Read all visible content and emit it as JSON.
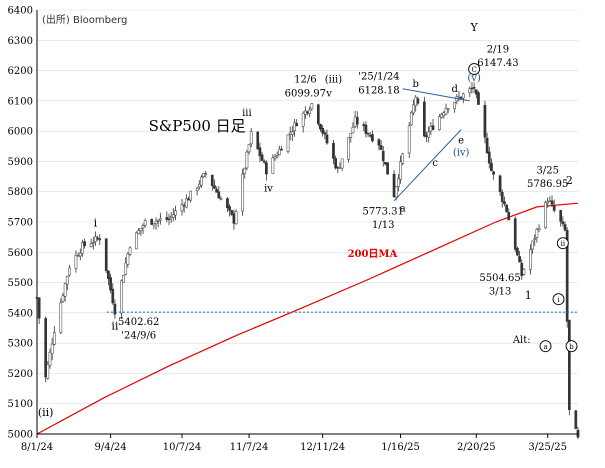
{
  "chart_data": {
    "type": "candlestick",
    "title": "S&P500 日足",
    "source": "(出所) Bloomberg",
    "ylim": [
      5000,
      6400
    ],
    "y_ticks": [
      5000,
      5100,
      5200,
      5300,
      5400,
      5500,
      5600,
      5700,
      5800,
      5900,
      6000,
      6100,
      6200,
      6300,
      6400
    ],
    "x_tick_labels": [
      "8/1/24",
      "9/4/24",
      "10/7/24",
      "11/7/24",
      "12/11/24",
      "1/16/25",
      "2/20/25",
      "3/25/25"
    ],
    "x_range": [
      "2024-08-01",
      "2025-04-08"
    ],
    "support_level": 5402.62,
    "ma_label": "200日MA",
    "ma_200": [
      {
        "x": "2024-08-01",
        "y": 5000
      },
      {
        "x": "2024-09-01",
        "y": 5120
      },
      {
        "x": "2024-10-01",
        "y": 5225
      },
      {
        "x": "2024-11-01",
        "y": 5325
      },
      {
        "x": "2024-12-01",
        "y": 5415
      },
      {
        "x": "2025-01-01",
        "y": 5510
      },
      {
        "x": "2025-02-01",
        "y": 5610
      },
      {
        "x": "2025-03-01",
        "y": 5700
      },
      {
        "x": "2025-03-20",
        "y": 5750
      },
      {
        "x": "2025-04-08",
        "y": 5762
      }
    ],
    "price_path": [
      {
        "x": "2024-08-01",
        "y": 5450
      },
      {
        "x": "2024-08-05",
        "y": 5186
      },
      {
        "x": "2024-08-09",
        "y": 5345
      },
      {
        "x": "2024-08-16",
        "y": 5555
      },
      {
        "x": "2024-08-22",
        "y": 5620
      },
      {
        "x": "2024-08-30",
        "y": 5648
      },
      {
        "x": "2024-09-06",
        "y": 5408
      },
      {
        "x": "2024-09-13",
        "y": 5626
      },
      {
        "x": "2024-09-20",
        "y": 5700
      },
      {
        "x": "2024-10-01",
        "y": 5710
      },
      {
        "x": "2024-10-10",
        "y": 5780
      },
      {
        "x": "2024-10-18",
        "y": 5860
      },
      {
        "x": "2024-10-31",
        "y": 5705
      },
      {
        "x": "2024-11-08",
        "y": 5990
      },
      {
        "x": "2024-11-15",
        "y": 5870
      },
      {
        "x": "2024-11-29",
        "y": 6030
      },
      {
        "x": "2024-12-06",
        "y": 6090
      },
      {
        "x": "2024-12-18",
        "y": 5870
      },
      {
        "x": "2024-12-26",
        "y": 6035
      },
      {
        "x": "2025-01-06",
        "y": 5960
      },
      {
        "x": "2025-01-13",
        "y": 5790
      },
      {
        "x": "2025-01-23",
        "y": 6115
      },
      {
        "x": "2025-01-27",
        "y": 5975
      },
      {
        "x": "2025-02-06",
        "y": 6080
      },
      {
        "x": "2025-02-19",
        "y": 6144
      },
      {
        "x": "2025-02-27",
        "y": 5870
      },
      {
        "x": "2025-03-06",
        "y": 5740
      },
      {
        "x": "2025-03-13",
        "y": 5525
      },
      {
        "x": "2025-03-25",
        "y": 5776
      },
      {
        "x": "2025-04-02",
        "y": 5670
      },
      {
        "x": "2025-04-04",
        "y": 5074
      },
      {
        "x": "2025-04-08",
        "y": 4982
      }
    ],
    "annotations": [
      {
        "text": "Y",
        "x": "2025-02-19",
        "y": 6330,
        "cls": "wave big"
      },
      {
        "text": "2/19",
        "x": "2025-03-02",
        "y": 6260,
        "cls": ""
      },
      {
        "text": "6147.43",
        "x": "2025-03-02",
        "y": 6215,
        "cls": ""
      },
      {
        "text": "(v)",
        "x": "2025-02-19",
        "y": 6165,
        "cls": "blue-t"
      },
      {
        "text": "12/6",
        "x": "2024-12-03",
        "y": 6160,
        "cls": ""
      },
      {
        "text": "6099.97",
        "x": "2024-12-03",
        "y": 6115,
        "cls": ""
      },
      {
        "text": "(iii)",
        "x": "2024-12-16",
        "y": 6160,
        "cls": ""
      },
      {
        "text": "v",
        "x": "2024-12-14",
        "y": 6115,
        "cls": ""
      },
      {
        "text": "'25/1/24",
        "x": "2025-01-06",
        "y": 6170,
        "cls": ""
      },
      {
        "text": "6128.18",
        "x": "2025-01-06",
        "y": 6125,
        "cls": ""
      },
      {
        "text": "b",
        "x": "2025-01-23",
        "y": 6145,
        "cls": ""
      },
      {
        "text": "d",
        "x": "2025-02-10",
        "y": 6130,
        "cls": ""
      },
      {
        "text": "iii",
        "x": "2024-11-06",
        "y": 6050,
        "cls": ""
      },
      {
        "text": "S&P500 日足",
        "x": "2024-10-14",
        "y": 6000,
        "cls": "big"
      },
      {
        "text": "e",
        "x": "2025-02-13",
        "y": 5960,
        "cls": ""
      },
      {
        "text": "(iv)",
        "x": "2025-02-13",
        "y": 5920,
        "cls": "blue-t"
      },
      {
        "text": "c",
        "x": "2025-02-01",
        "y": 5885,
        "cls": ""
      },
      {
        "text": "3/25",
        "x": "2025-03-25",
        "y": 5860,
        "cls": ""
      },
      {
        "text": "5786.95",
        "x": "2025-03-25",
        "y": 5815,
        "cls": ""
      },
      {
        "text": "2",
        "x": "2025-04-04",
        "y": 5825,
        "cls": "wave big"
      },
      {
        "text": "iv",
        "x": "2024-11-16",
        "y": 5800,
        "cls": ""
      },
      {
        "text": "5773.31",
        "x": "2025-01-08",
        "y": 5725,
        "cls": ""
      },
      {
        "text": "a",
        "x": "2025-01-17",
        "y": 5735,
        "cls": ""
      },
      {
        "text": "1/13",
        "x": "2025-01-08",
        "y": 5680,
        "cls": ""
      },
      {
        "text": "i",
        "x": "2024-08-28",
        "y": 5685,
        "cls": "wave"
      },
      {
        "text": "200日MA",
        "x": "2025-01-03",
        "y": 5585,
        "cls": "ma-label"
      },
      {
        "text": "5504.65",
        "x": "2025-03-03",
        "y": 5505,
        "cls": ""
      },
      {
        "text": "3/13",
        "x": "2025-03-03",
        "y": 5460,
        "cls": ""
      },
      {
        "text": "1",
        "x": "2025-03-16",
        "y": 5445,
        "cls": "wave big"
      },
      {
        "text": "ii",
        "x": "2024-09-06",
        "y": 5345,
        "cls": "wave"
      },
      {
        "text": "5402.62",
        "x": "2024-09-17",
        "y": 5360,
        "cls": ""
      },
      {
        "text": "'24/9/6",
        "x": "2024-09-17",
        "y": 5315,
        "cls": ""
      },
      {
        "text": "Alt:",
        "x": "2025-03-13",
        "y": 5300,
        "cls": ""
      },
      {
        "text": "(ii)",
        "x": "2024-08-05",
        "y": 5060,
        "cls": "wave"
      }
    ],
    "circled": [
      {
        "text": "C",
        "x": "2025-02-19",
        "y": 6205
      },
      {
        "text": "ii",
        "x": "2025-04-01",
        "y": 5630
      },
      {
        "text": "i",
        "x": "2025-03-30",
        "y": 5445
      },
      {
        "text": "a",
        "x": "2025-03-24",
        "y": 5290
      },
      {
        "text": "b",
        "x": "2025-04-05",
        "y": 5290
      }
    ],
    "trendline_upper": [
      {
        "x": "2025-01-17",
        "y": 6140
      },
      {
        "x": "2025-02-17",
        "y": 6100
      }
    ],
    "trendline_lower": [
      {
        "x": "2025-01-13",
        "y": 5770
      },
      {
        "x": "2025-02-13",
        "y": 6005
      }
    ]
  }
}
